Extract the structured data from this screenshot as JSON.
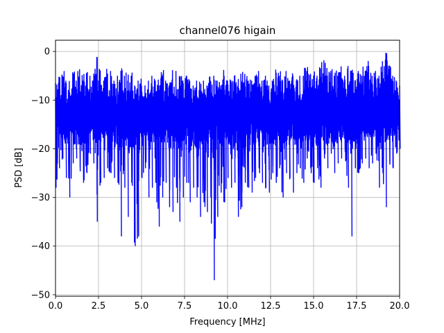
{
  "chart_data": {
    "type": "line",
    "title": "channel076 higain",
    "xlabel": "Frequency [MHz]",
    "ylabel": "PSD [dB]",
    "xlim": [
      0,
      20
    ],
    "ylim": [
      -50.3,
      2.3
    ],
    "xticks": [
      0,
      2.5,
      5,
      7.5,
      10,
      12.5,
      15,
      17.5,
      20
    ],
    "xtick_labels": [
      "0.0",
      "2.5",
      "5.0",
      "7.5",
      "10.0",
      "12.5",
      "15.0",
      "17.5",
      "20.0"
    ],
    "yticks": [
      0,
      -10,
      -20,
      -30,
      -40,
      -50
    ],
    "ytick_labels": [
      "0",
      "−10",
      "−20",
      "−30",
      "−40",
      "−50"
    ],
    "grid": true,
    "series_color": "#0000ff",
    "series": [
      {
        "x": [
          0.0,
          0.2,
          0.4,
          0.6,
          0.8,
          1.0,
          1.2,
          1.4,
          1.6,
          1.8,
          2.0,
          2.2,
          2.4,
          2.6,
          2.8,
          3.0,
          3.2,
          3.4,
          3.6,
          3.8,
          4.0,
          4.2,
          4.4,
          4.6,
          4.8,
          5.0,
          5.2,
          5.4,
          5.6,
          5.8,
          6.0,
          6.2,
          6.4,
          6.6,
          6.8,
          7.0,
          7.2,
          7.4,
          7.6,
          7.8,
          8.0,
          8.2,
          8.4,
          8.6,
          8.8,
          9.0,
          9.2,
          9.4,
          9.6,
          9.8,
          10.0,
          10.2,
          10.4,
          10.6,
          10.8,
          11.0,
          11.2,
          11.4,
          11.6,
          11.8,
          12.0,
          12.2,
          12.4,
          12.6,
          12.8,
          13.0,
          13.2,
          13.4,
          13.6,
          13.8,
          14.0,
          14.2,
          14.4,
          14.6,
          14.8,
          15.0,
          15.2,
          15.4,
          15.6,
          15.8,
          16.0,
          16.2,
          16.4,
          16.6,
          16.8,
          17.0,
          17.2,
          17.4,
          17.6,
          17.8,
          18.0,
          18.2,
          18.4,
          18.6,
          18.8,
          19.0,
          19.2,
          19.4,
          19.6,
          19.8,
          20.0
        ],
        "upper": [
          -8,
          -6,
          -5,
          -6,
          -7,
          -5,
          -6,
          -5,
          -6,
          -5,
          -5,
          -6,
          -2,
          -4,
          -6,
          -5,
          -4,
          -6,
          -5,
          -4,
          -5,
          -6,
          -5,
          -7,
          -6,
          -7,
          -8,
          -6,
          -5,
          -6,
          -7,
          -5,
          -6,
          -7,
          -5,
          -4,
          -6,
          -6,
          -5,
          -6,
          -7,
          -6,
          -8,
          -6,
          -7,
          -6,
          -5,
          -6,
          -7,
          -5,
          -6,
          -6,
          -5,
          -7,
          -6,
          -5,
          -6,
          -6,
          -5,
          -4,
          -6,
          -5,
          -7,
          -6,
          -5,
          -5,
          -6,
          -5,
          -6,
          -5,
          -6,
          -5,
          -5,
          -4,
          -6,
          -5,
          -5,
          -4,
          -3,
          -5,
          -4,
          -5,
          -5,
          -4,
          -5,
          -3,
          -4,
          -6,
          -4,
          -5,
          -4,
          -3,
          -5,
          -4,
          -5,
          -2,
          -1,
          -4,
          -5,
          -6,
          -7
        ],
        "lower": [
          -28,
          -24,
          -22,
          -26,
          -30,
          -23,
          -22,
          -24,
          -27,
          -25,
          -21,
          -23,
          -35,
          -27,
          -26,
          -24,
          -25,
          -26,
          -27,
          -38,
          -28,
          -34,
          -27,
          -40,
          -38,
          -26,
          -24,
          -30,
          -28,
          -27,
          -36,
          -30,
          -27,
          -32,
          -33,
          -28,
          -35,
          -30,
          -27,
          -31,
          -28,
          -30,
          -34,
          -31,
          -33,
          -30,
          -47,
          -34,
          -29,
          -31,
          -26,
          -28,
          -27,
          -34,
          -32,
          -27,
          -28,
          -29,
          -26,
          -24,
          -27,
          -28,
          -29,
          -25,
          -27,
          -24,
          -30,
          -25,
          -26,
          -29,
          -25,
          -24,
          -27,
          -22,
          -24,
          -27,
          -24,
          -28,
          -22,
          -24,
          -21,
          -25,
          -23,
          -22,
          -20,
          -28,
          -38,
          -24,
          -25,
          -23,
          -22,
          -24,
          -23,
          -21,
          -28,
          -25,
          -32,
          -23,
          -24,
          -21,
          -20
        ]
      }
    ]
  }
}
